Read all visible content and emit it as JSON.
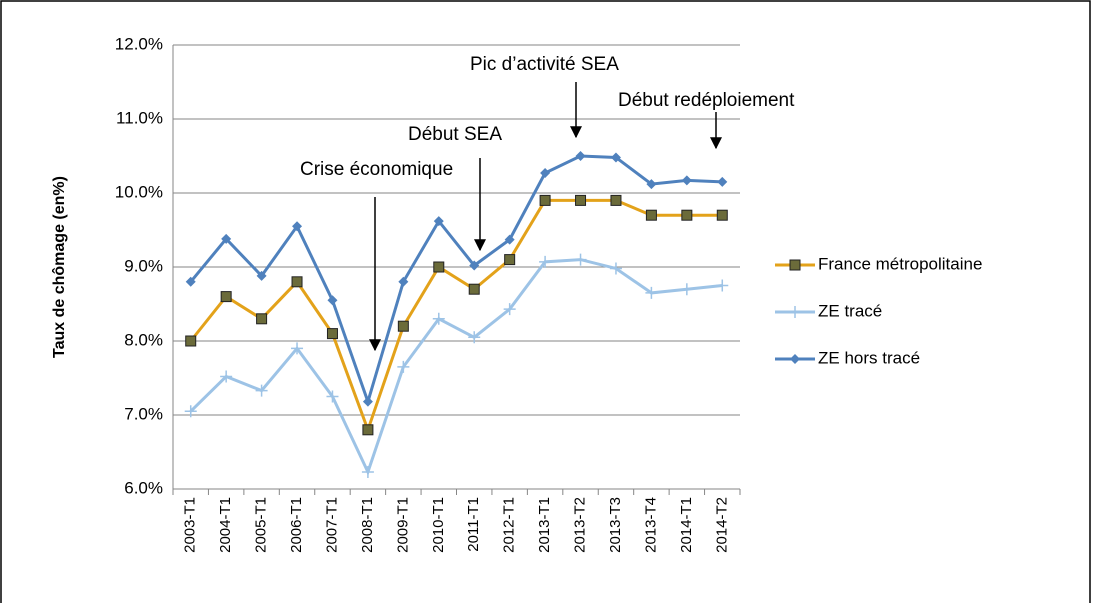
{
  "chart_data": {
    "type": "line",
    "y_axis_label": "Taux de chômage (en%)",
    "categories": [
      "2003-T1",
      "2004-T1",
      "2005-T1",
      "2006-T1",
      "2007-T1",
      "2008-T1",
      "2009-T1",
      "2010-T1",
      "2011-T1",
      "2012-T1",
      "2013-T1",
      "2013-T2",
      "2013-T3",
      "2013-T4",
      "2014-T1",
      "2014-T2"
    ],
    "series": [
      {
        "name": "France métropolitaine",
        "color": "#e3a21a",
        "marker": "square",
        "values": [
          8.0,
          8.6,
          8.3,
          8.8,
          8.1,
          6.8,
          8.2,
          9.0,
          8.7,
          9.1,
          9.9,
          9.9,
          9.9,
          9.7,
          9.7,
          9.7
        ]
      },
      {
        "name": "ZE tracé",
        "color": "#9dc3e6",
        "marker": "plus",
        "values": [
          7.05,
          7.52,
          7.33,
          7.9,
          7.25,
          6.23,
          7.65,
          8.3,
          8.05,
          8.43,
          9.07,
          9.1,
          8.98,
          8.65,
          8.7,
          8.75
        ]
      },
      {
        "name": "ZE hors tracé",
        "color": "#4f81bd",
        "marker": "diamond",
        "values": [
          8.8,
          9.38,
          8.88,
          9.55,
          8.55,
          7.18,
          8.8,
          9.62,
          9.02,
          9.37,
          10.27,
          10.5,
          10.48,
          10.12,
          10.17,
          10.15
        ]
      }
    ],
    "ylim": [
      6,
      12
    ],
    "yticks": [
      {
        "value": 6,
        "label": "6.0%"
      },
      {
        "value": 7,
        "label": "7.0%"
      },
      {
        "value": 8,
        "label": "8.0%"
      },
      {
        "value": 9,
        "label": "9.0%"
      },
      {
        "value": 10,
        "label": "10.0%"
      },
      {
        "value": 11,
        "label": "11.0%"
      },
      {
        "value": 12,
        "label": "12.0%"
      }
    ],
    "grid": true,
    "legend": "right",
    "annotations": [
      "Crise économique",
      "Début SEA",
      "Pic d’activité SEA",
      "Début redéploiement"
    ]
  }
}
